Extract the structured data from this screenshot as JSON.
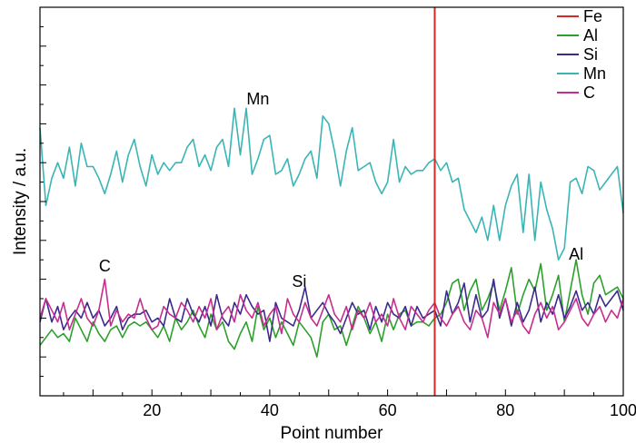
{
  "chart_data": {
    "type": "line",
    "xlabel": "Point number",
    "ylabel": "Intensity / a.u.",
    "xlim": [
      1,
      100
    ],
    "ylim": [
      0,
      100
    ],
    "x_ticks": [
      20,
      40,
      60,
      80,
      100
    ],
    "y_tick_labels": "none",
    "grid": false,
    "legend_position": "top-right",
    "vertical_marker": {
      "series": "Fe",
      "x": 68,
      "color": "#d62728"
    },
    "annotations": [
      {
        "text": "Mn",
        "x": 38,
        "y": 75
      },
      {
        "text": "C",
        "x": 12,
        "y": 32
      },
      {
        "text": "Si",
        "x": 45,
        "y": 28
      },
      {
        "text": "Al",
        "x": 92,
        "y": 35
      }
    ],
    "series": [
      {
        "name": "Fe",
        "color": "#d62728",
        "values": []
      },
      {
        "name": "Al",
        "color": "#2ca02c",
        "values": [
          13,
          15,
          17,
          15,
          16,
          14,
          20,
          17,
          14,
          19,
          16,
          14,
          17,
          18,
          15,
          18,
          19,
          18,
          19,
          17,
          15,
          18,
          14,
          20,
          17,
          19,
          22,
          18,
          15,
          21,
          17,
          19,
          14,
          12,
          16,
          19,
          14,
          23,
          17,
          20,
          15,
          19,
          16,
          13,
          19,
          17,
          15,
          10,
          19,
          21,
          17,
          18,
          13,
          18,
          23,
          20,
          16,
          19,
          14,
          21,
          17,
          21,
          22,
          18,
          19,
          19,
          18,
          20,
          21,
          24,
          29,
          30,
          22,
          27,
          30,
          22,
          25,
          29,
          22,
          27,
          33,
          21,
          26,
          30,
          27,
          34,
          22,
          26,
          31,
          19,
          27,
          35,
          26,
          21,
          29,
          31,
          26,
          27,
          28,
          25
        ]
      },
      {
        "name": "Si",
        "color": "#3b2a8c",
        "values": [
          19,
          25,
          19,
          23,
          17,
          20,
          22,
          20,
          24,
          20,
          22,
          18,
          20,
          23,
          17,
          20,
          21,
          21,
          22,
          19,
          20,
          18,
          25,
          20,
          19,
          25,
          21,
          19,
          23,
          18,
          26,
          20,
          18,
          24,
          21,
          26,
          23,
          21,
          22,
          14,
          24,
          20,
          19,
          18,
          22,
          28,
          20,
          22,
          24,
          21,
          19,
          16,
          20,
          24,
          21,
          22,
          17,
          23,
          19,
          24,
          21,
          20,
          23,
          18,
          23,
          20,
          21,
          22,
          18,
          27,
          21,
          24,
          29,
          19,
          26,
          20,
          22,
          30,
          20,
          25,
          18,
          24,
          19,
          22,
          28,
          19,
          24,
          21,
          26,
          20,
          23,
          27,
          22,
          24,
          21,
          26,
          23,
          25,
          27,
          22
        ]
      },
      {
        "name": "Mn",
        "color": "#3ab5b5",
        "values": [
          69,
          49,
          56,
          60,
          56,
          64,
          54,
          65,
          59,
          59,
          56,
          52,
          57,
          63,
          55,
          62,
          66,
          59,
          54,
          62,
          57,
          60,
          58,
          60,
          60,
          64,
          66,
          59,
          62,
          58,
          64,
          66,
          59,
          74,
          62,
          74,
          57,
          61,
          66,
          67,
          57,
          58,
          61,
          54,
          57,
          61,
          63,
          56,
          72,
          70,
          63,
          54,
          63,
          69,
          58,
          59,
          60,
          55,
          52,
          55,
          66,
          55,
          59,
          57,
          58,
          58,
          60,
          61,
          58,
          60,
          55,
          56,
          48,
          45,
          42,
          46,
          40,
          49,
          40,
          49,
          54,
          57,
          42,
          57,
          40,
          55,
          48,
          43,
          35,
          38,
          55,
          56,
          52,
          59,
          58,
          53,
          55,
          57,
          59,
          47
        ]
      },
      {
        "name": "C",
        "color": "#c72d8e",
        "values": [
          20,
          25,
          22,
          19,
          24,
          17,
          21,
          25,
          20,
          18,
          22,
          30,
          18,
          22,
          19,
          21,
          20,
          25,
          20,
          17,
          18,
          23,
          21,
          20,
          24,
          22,
          19,
          23,
          20,
          25,
          17,
          21,
          23,
          19,
          26,
          22,
          20,
          24,
          18,
          21,
          23,
          16,
          25,
          21,
          19,
          24,
          20,
          18,
          22,
          26,
          21,
          19,
          23,
          17,
          22,
          20,
          24,
          19,
          21,
          18,
          25,
          20,
          17,
          23,
          21,
          19,
          22,
          24,
          20,
          18,
          21,
          23,
          19,
          17,
          22,
          20,
          15,
          24,
          21,
          25,
          19,
          22,
          18,
          16,
          21,
          24,
          20,
          23,
          17,
          19,
          22,
          25,
          20,
          18,
          21,
          23,
          19,
          22,
          20,
          25
        ]
      }
    ]
  }
}
